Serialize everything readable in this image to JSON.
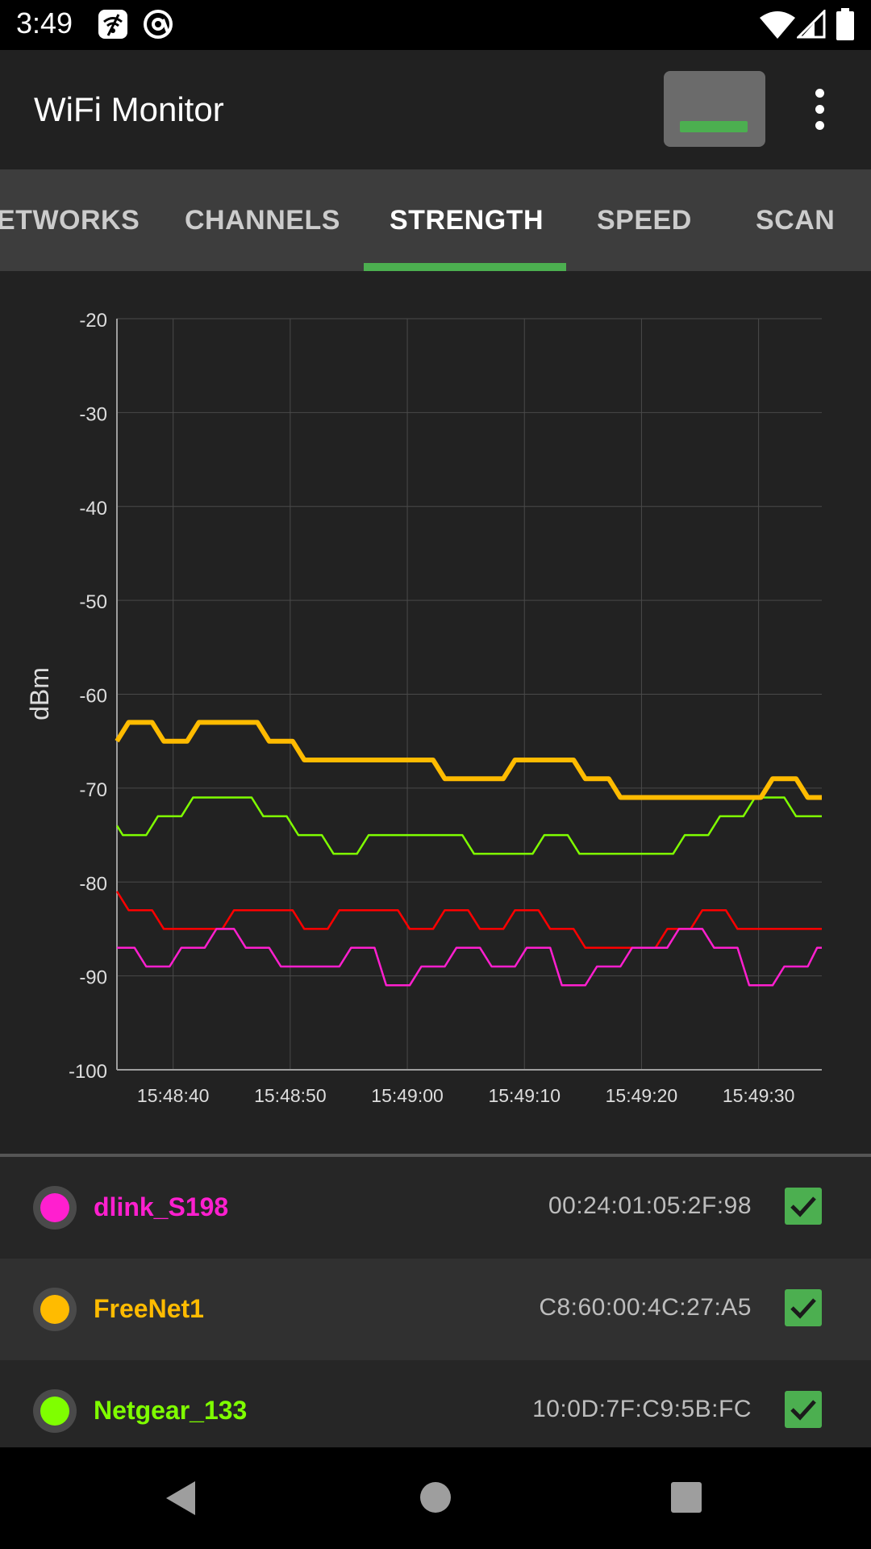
{
  "status_bar": {
    "time": "3:49",
    "left_icons": [
      "wifi-settings-icon",
      "at-sign-icon"
    ],
    "right_icons": [
      "wifi-icon",
      "signal-icon",
      "battery-icon"
    ]
  },
  "app_bar": {
    "title": "WiFi Monitor",
    "overflow_icon": "more-vert-icon"
  },
  "tabs": {
    "items": [
      "ETWORKS",
      "CHANNELS",
      "STRENGTH",
      "SPEED",
      "SCAN"
    ],
    "active": "STRENGTH"
  },
  "chart_data": {
    "type": "line",
    "ylabel": "dBm",
    "ylim": [
      -100,
      -20
    ],
    "yticks": [
      "-20",
      "-30",
      "-40",
      "-50",
      "-60",
      "-70",
      "-80",
      "-90",
      "-100"
    ],
    "xticks": [
      "15:48:40",
      "15:48:50",
      "15:49:00",
      "15:49:10",
      "15:49:20",
      "15:49:30"
    ],
    "grid": true,
    "series": [
      {
        "name": "FreeNet1",
        "color": "#ffbb00",
        "points": [
          [
            35.2,
            -65
          ],
          [
            36.2,
            -63
          ],
          [
            38.2,
            -63
          ],
          [
            39.2,
            -65
          ],
          [
            41.2,
            -65
          ],
          [
            42.2,
            -63
          ],
          [
            47.2,
            -63
          ],
          [
            48.2,
            -65
          ],
          [
            50.2,
            -65
          ],
          [
            51.2,
            -67
          ],
          [
            62.2,
            -67
          ],
          [
            63.2,
            -69
          ],
          [
            68.2,
            -69
          ],
          [
            69.2,
            -67
          ],
          [
            74.2,
            -67
          ],
          [
            75.2,
            -69
          ],
          [
            77.2,
            -69
          ],
          [
            78.2,
            -71
          ],
          [
            90.2,
            -71
          ],
          [
            91.2,
            -69
          ],
          [
            93.2,
            -69
          ],
          [
            94.2,
            -71
          ],
          [
            95.4,
            -71
          ]
        ]
      },
      {
        "name": "Netgear_133",
        "color": "#7fff00",
        "points": [
          [
            35.2,
            -74
          ],
          [
            35.7,
            -75
          ],
          [
            37.7,
            -75
          ],
          [
            38.7,
            -73
          ],
          [
            40.7,
            -73
          ],
          [
            41.7,
            -71
          ],
          [
            46.7,
            -71
          ],
          [
            47.7,
            -73
          ],
          [
            49.7,
            -73
          ],
          [
            50.7,
            -75
          ],
          [
            52.7,
            -75
          ],
          [
            53.7,
            -77
          ],
          [
            55.7,
            -77
          ],
          [
            56.7,
            -75
          ],
          [
            64.7,
            -75
          ],
          [
            65.7,
            -77
          ],
          [
            70.7,
            -77
          ],
          [
            71.7,
            -75
          ],
          [
            73.7,
            -75
          ],
          [
            74.7,
            -77
          ],
          [
            82.7,
            -77
          ],
          [
            83.7,
            -75
          ],
          [
            85.7,
            -75
          ],
          [
            86.7,
            -73
          ],
          [
            88.7,
            -73
          ],
          [
            89.7,
            -71
          ],
          [
            92.2,
            -71
          ],
          [
            93.2,
            -73
          ],
          [
            95.4,
            -73
          ]
        ]
      },
      {
        "name": "",
        "color": "#ff0000",
        "points": [
          [
            35.2,
            -81
          ],
          [
            36.2,
            -83
          ],
          [
            38.2,
            -83
          ],
          [
            39.2,
            -85
          ],
          [
            44.2,
            -85
          ],
          [
            45.2,
            -83
          ],
          [
            50.2,
            -83
          ],
          [
            51.2,
            -85
          ],
          [
            53.2,
            -85
          ],
          [
            54.2,
            -83
          ],
          [
            59.2,
            -83
          ],
          [
            60.2,
            -85
          ],
          [
            62.2,
            -85
          ],
          [
            63.2,
            -83
          ],
          [
            65.2,
            -83
          ],
          [
            66.2,
            -85
          ],
          [
            68.2,
            -85
          ],
          [
            69.2,
            -83
          ],
          [
            71.2,
            -83
          ],
          [
            72.2,
            -85
          ],
          [
            74.2,
            -85
          ],
          [
            75.2,
            -87
          ],
          [
            81.2,
            -87
          ],
          [
            82.2,
            -85
          ],
          [
            84.2,
            -85
          ],
          [
            85.2,
            -83
          ],
          [
            87.2,
            -83
          ],
          [
            88.2,
            -85
          ],
          [
            95.4,
            -85
          ]
        ]
      },
      {
        "name": "dlink_S198",
        "color": "#ff1fcf",
        "points": [
          [
            35.2,
            -87
          ],
          [
            36.7,
            -87
          ],
          [
            37.7,
            -89
          ],
          [
            39.7,
            -89
          ],
          [
            40.7,
            -87
          ],
          [
            42.7,
            -87
          ],
          [
            43.7,
            -85
          ],
          [
            45.2,
            -85
          ],
          [
            46.2,
            -87
          ],
          [
            48.2,
            -87
          ],
          [
            49.2,
            -89
          ],
          [
            54.2,
            -89
          ],
          [
            55.2,
            -87
          ],
          [
            57.2,
            -87
          ],
          [
            58.2,
            -91
          ],
          [
            60.2,
            -91
          ],
          [
            61.2,
            -89
          ],
          [
            63.2,
            -89
          ],
          [
            64.2,
            -87
          ],
          [
            66.2,
            -87
          ],
          [
            67.2,
            -89
          ],
          [
            69.2,
            -89
          ],
          [
            70.2,
            -87
          ],
          [
            72.2,
            -87
          ],
          [
            73.2,
            -91
          ],
          [
            75.2,
            -91
          ],
          [
            76.2,
            -89
          ],
          [
            78.2,
            -89
          ],
          [
            79.2,
            -87
          ],
          [
            82.2,
            -87
          ],
          [
            83.2,
            -85
          ],
          [
            85.2,
            -85
          ],
          [
            86.2,
            -87
          ],
          [
            88.2,
            -87
          ],
          [
            89.2,
            -91
          ],
          [
            91.2,
            -91
          ],
          [
            92.2,
            -89
          ],
          [
            94.2,
            -89
          ],
          [
            95.0,
            -87
          ],
          [
            95.4,
            -87
          ]
        ]
      }
    ]
  },
  "networks": [
    {
      "ssid": "dlink_S198",
      "bssid": "00:24:01:05:2F:98",
      "color": "#ff1fcf",
      "checked": true
    },
    {
      "ssid": "FreeNet1",
      "bssid": "C8:60:00:4C:27:A5",
      "color": "#ffbb00",
      "checked": true
    },
    {
      "ssid": "Netgear_133",
      "bssid": "10:0D:7F:C9:5B:FC",
      "color": "#7fff00",
      "checked": true
    }
  ],
  "nav_bar": {
    "icons": [
      "back-icon",
      "home-icon",
      "recents-icon"
    ]
  }
}
